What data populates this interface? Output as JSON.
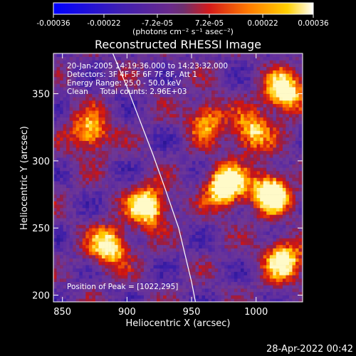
{
  "colorbar": {
    "ticks": [
      {
        "value": -0.00036,
        "label": "-0.00036"
      },
      {
        "value": -0.00022,
        "label": "-0.00022"
      },
      {
        "value": -7.2e-05,
        "label": "-7.2e-05"
      },
      {
        "value": 7.2e-05,
        "label": "7.2e-05"
      },
      {
        "value": 0.00022,
        "label": "0.00022"
      },
      {
        "value": 0.00036,
        "label": "0.00036"
      }
    ],
    "units_label": "(photons cm⁻² s⁻¹ asec⁻²)",
    "range": [
      -0.00036,
      0.00036
    ]
  },
  "chart_data": {
    "type": "heatmap",
    "title": "Reconstructed RHESSI Image",
    "xlabel": "Heliocentric X (arcsec)",
    "ylabel": "Heliocentric Y (arcsec)",
    "xlim": [
      843,
      1036
    ],
    "ylim": [
      195,
      380
    ],
    "xticks": [
      850,
      900,
      950,
      1000
    ],
    "yticks": [
      200,
      250,
      300,
      350
    ],
    "grid": false,
    "annotations": [
      "20-Jan-2005 14:19:36.000 to 14:23:32.000",
      "Detectors: 3F 4F 5F 6F 7F 8F, Att 1",
      "Energy Range: 25.0 - 50.0 keV",
      "Clean     Total counts: 2.96E+03"
    ],
    "peak_label": "Position of Peak = [1022,295]",
    "peak_position": [
      1022,
      295
    ],
    "limb_curve": {
      "x": [
        889,
        900,
        910,
        920,
        930,
        940,
        950,
        953
      ],
      "y": [
        380,
        355,
        330,
        305,
        278,
        250,
        210,
        195
      ]
    },
    "hot_regions": [
      {
        "x": 915,
        "y": 265,
        "level": 0.8
      },
      {
        "x": 975,
        "y": 280,
        "level": 0.9
      },
      {
        "x": 1010,
        "y": 275,
        "level": 0.85
      },
      {
        "x": 1020,
        "y": 350,
        "level": 0.8
      },
      {
        "x": 995,
        "y": 320,
        "level": 0.6
      },
      {
        "x": 885,
        "y": 235,
        "level": 0.7
      },
      {
        "x": 870,
        "y": 320,
        "level": 0.6
      },
      {
        "x": 1020,
        "y": 225,
        "level": 0.7
      },
      {
        "x": 960,
        "y": 330,
        "level": 0.5
      }
    ]
  },
  "footer": {
    "timestamp": "28-Apr-2022 00:42"
  }
}
